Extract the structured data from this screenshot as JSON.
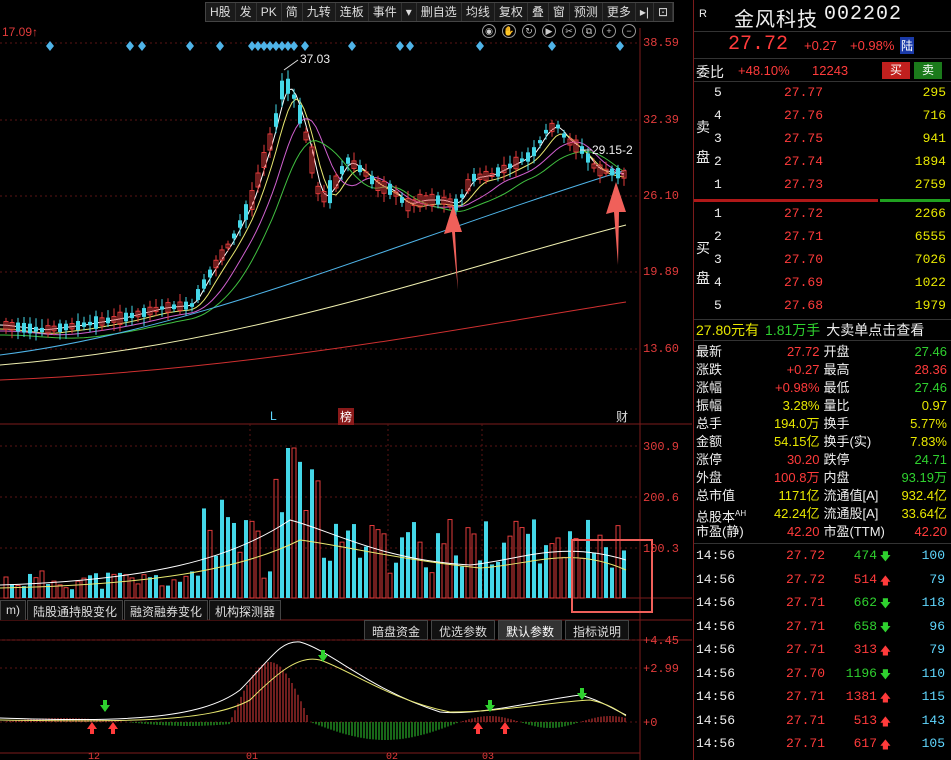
{
  "toolbar": [
    "H股",
    "发",
    "PK",
    "简",
    "九转",
    "连板",
    "事件",
    "▾",
    "删自选",
    "均线",
    "复权",
    "叠",
    "窗",
    "预测",
    "更多",
    "▸|",
    "⊡"
  ],
  "chart_icons": [
    "eye-icon",
    "hand-icon",
    "refresh-icon",
    "play-icon",
    "scissors-icon",
    "copy-icon",
    "zoom-in-icon",
    "zoom-out-icon"
  ],
  "header_left_text": "17.09↑",
  "price_axis": [
    "38.59",
    "32.39",
    "26.10",
    "19.89",
    "13.60"
  ],
  "peak_label": "37.03",
  "ma_label": "29.15-2",
  "markers": {
    "l_marker": "L",
    "bang_marker": "榜",
    "cai_marker": "财"
  },
  "volume_axis": [
    "300.9",
    "200.6",
    "100.3"
  ],
  "bottom_tabs": [
    "m)",
    "陆股通持股变化",
    "融资融券变化",
    "机构探测器"
  ],
  "indicator_tabs": [
    "暗盘资金",
    "优选参数",
    "默认参数",
    "指标说明"
  ],
  "macd_axis": [
    "+4.45",
    "+2.99",
    "+0"
  ],
  "x_axis_labels": [
    "12",
    "01",
    "02",
    "03"
  ],
  "stock": {
    "badge": "R",
    "name": "金风科技",
    "code": "002202",
    "price": "27.72",
    "change": "+0.27",
    "change_pct": "+0.98%",
    "lu_tag": "陆",
    "weibi_label": "委比",
    "weibi_value": "+48.10%",
    "weicha_value": "12243",
    "buy_btn": "买",
    "sell_btn": "卖"
  },
  "asks_label": [
    "卖",
    "盘"
  ],
  "bids_label": [
    "买",
    "盘"
  ],
  "asks": [
    {
      "level": "5",
      "price": "27.77",
      "vol": "295"
    },
    {
      "level": "4",
      "price": "27.76",
      "vol": "716"
    },
    {
      "level": "3",
      "price": "27.75",
      "vol": "941"
    },
    {
      "level": "2",
      "price": "27.74",
      "vol": "1894"
    },
    {
      "level": "1",
      "price": "27.73",
      "vol": "2759"
    }
  ],
  "bids": [
    {
      "level": "1",
      "price": "27.72",
      "vol": "2266"
    },
    {
      "level": "2",
      "price": "27.71",
      "vol": "6555"
    },
    {
      "level": "3",
      "price": "27.70",
      "vol": "7026"
    },
    {
      "level": "4",
      "price": "27.69",
      "vol": "1022"
    },
    {
      "level": "5",
      "price": "27.68",
      "vol": "1979"
    }
  ],
  "big_order": {
    "price": "27.80元有",
    "qty": "1.81万手",
    "text": "大卖单点击查看"
  },
  "stats": [
    [
      "最新",
      "27.72",
      "开盘",
      "27.46"
    ],
    [
      "涨跌",
      "+0.27",
      "最高",
      "28.36"
    ],
    [
      "涨幅",
      "+0.98%",
      "最低",
      "27.46"
    ],
    [
      "振幅",
      "3.28%",
      "量比",
      "0.97"
    ],
    [
      "总手",
      "194.0万",
      "换手",
      "5.77%"
    ],
    [
      "金额",
      "54.15亿",
      "换手(实)",
      "7.83%"
    ],
    [
      "涨停",
      "30.20",
      "跌停",
      "24.71"
    ],
    [
      "外盘",
      "100.8万",
      "内盘",
      "93.19万"
    ],
    [
      "总市值",
      "1171亿",
      "流通值[A]",
      "932.4亿"
    ],
    [
      "总股本AH",
      "42.24亿",
      "流通股[A]",
      "33.64亿"
    ],
    [
      "市盈(静)",
      "42.20",
      "市盈(TTM)",
      "42.20"
    ]
  ],
  "ticks": [
    {
      "time": "14:56",
      "price": "27.72",
      "vol": "474",
      "dir": "down",
      "n": "100"
    },
    {
      "time": "14:56",
      "price": "27.72",
      "vol": "514",
      "dir": "up",
      "n": "79"
    },
    {
      "time": "14:56",
      "price": "27.71",
      "vol": "662",
      "dir": "down",
      "n": "118"
    },
    {
      "time": "14:56",
      "price": "27.71",
      "vol": "658",
      "dir": "down",
      "n": "96"
    },
    {
      "time": "14:56",
      "price": "27.71",
      "vol": "313",
      "dir": "up",
      "n": "79"
    },
    {
      "time": "14:56",
      "price": "27.70",
      "vol": "1196",
      "dir": "down",
      "n": "110"
    },
    {
      "time": "14:56",
      "price": "27.71",
      "vol": "1381",
      "dir": "up",
      "n": "115"
    },
    {
      "time": "14:56",
      "price": "27.71",
      "vol": "513",
      "dir": "up",
      "n": "143"
    },
    {
      "time": "14:56",
      "price": "27.71",
      "vol": "617",
      "dir": "up",
      "n": "105"
    }
  ],
  "colors": {
    "up": "#e23b3b",
    "down": "#44d7e8",
    "ma5": "#ffffff",
    "ma10": "#e8e870",
    "ma20": "#d060d0",
    "ma30": "#40c040",
    "ma60": "#4fb4e8",
    "ma120": "#f0f0b0",
    "ma250": "#d03030"
  }
}
